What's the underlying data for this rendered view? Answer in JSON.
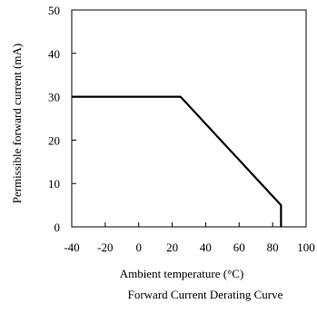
{
  "chart_data": {
    "type": "line",
    "title": "Forward Current Derating Curve",
    "xlabel": "Ambient temperature (°C)",
    "ylabel": "Permissible forward current (mA)",
    "xlim": [
      -40,
      100
    ],
    "ylim": [
      0,
      50
    ],
    "xticks": [
      -40,
      -20,
      0,
      20,
      40,
      60,
      80,
      100
    ],
    "yticks": [
      0,
      10,
      20,
      30,
      40,
      50
    ],
    "grid": false,
    "series": [
      {
        "x": [
          -40,
          25,
          85,
          85
        ],
        "y": [
          30,
          30,
          5,
          0
        ]
      }
    ]
  }
}
